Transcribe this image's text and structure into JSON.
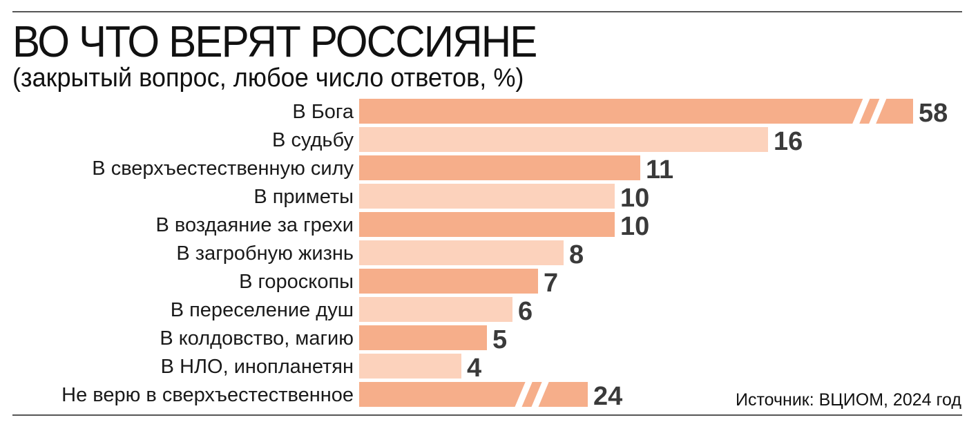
{
  "title": "ВО ЧТО ВЕРЯТ РОССИЯНЕ",
  "subtitle": "(закрытый вопрос, любое число ответов, %)",
  "source": "Источник: ВЦИОМ, 2024 год",
  "colors": {
    "bar_dark": "#f6ae8a",
    "bar_light": "#fcd2bc",
    "value_text": "#3a3a3a"
  },
  "chart_data": {
    "type": "bar",
    "orientation": "horizontal",
    "title": "ВО ЧТО ВЕРЯТ РОССИЯНЕ",
    "subtitle": "(закрытый вопрос, любое число ответов, %)",
    "categories": [
      "В Бога",
      "В судьбу",
      "В сверхъестественную силу",
      "В приметы",
      "В воздаяние за грехи",
      "В загробную жизнь",
      "В гороскопы",
      "В переселение душ",
      "В колдовство, магию",
      "В НЛО, инопланетян",
      "Не верю в сверхъестественное"
    ],
    "values": [
      58,
      16,
      11,
      10,
      10,
      8,
      7,
      6,
      5,
      4,
      24
    ],
    "broken_axis_bars": [
      "В Бога",
      "Не верю в сверхъестественное"
    ],
    "grid": false,
    "legend": "none"
  }
}
